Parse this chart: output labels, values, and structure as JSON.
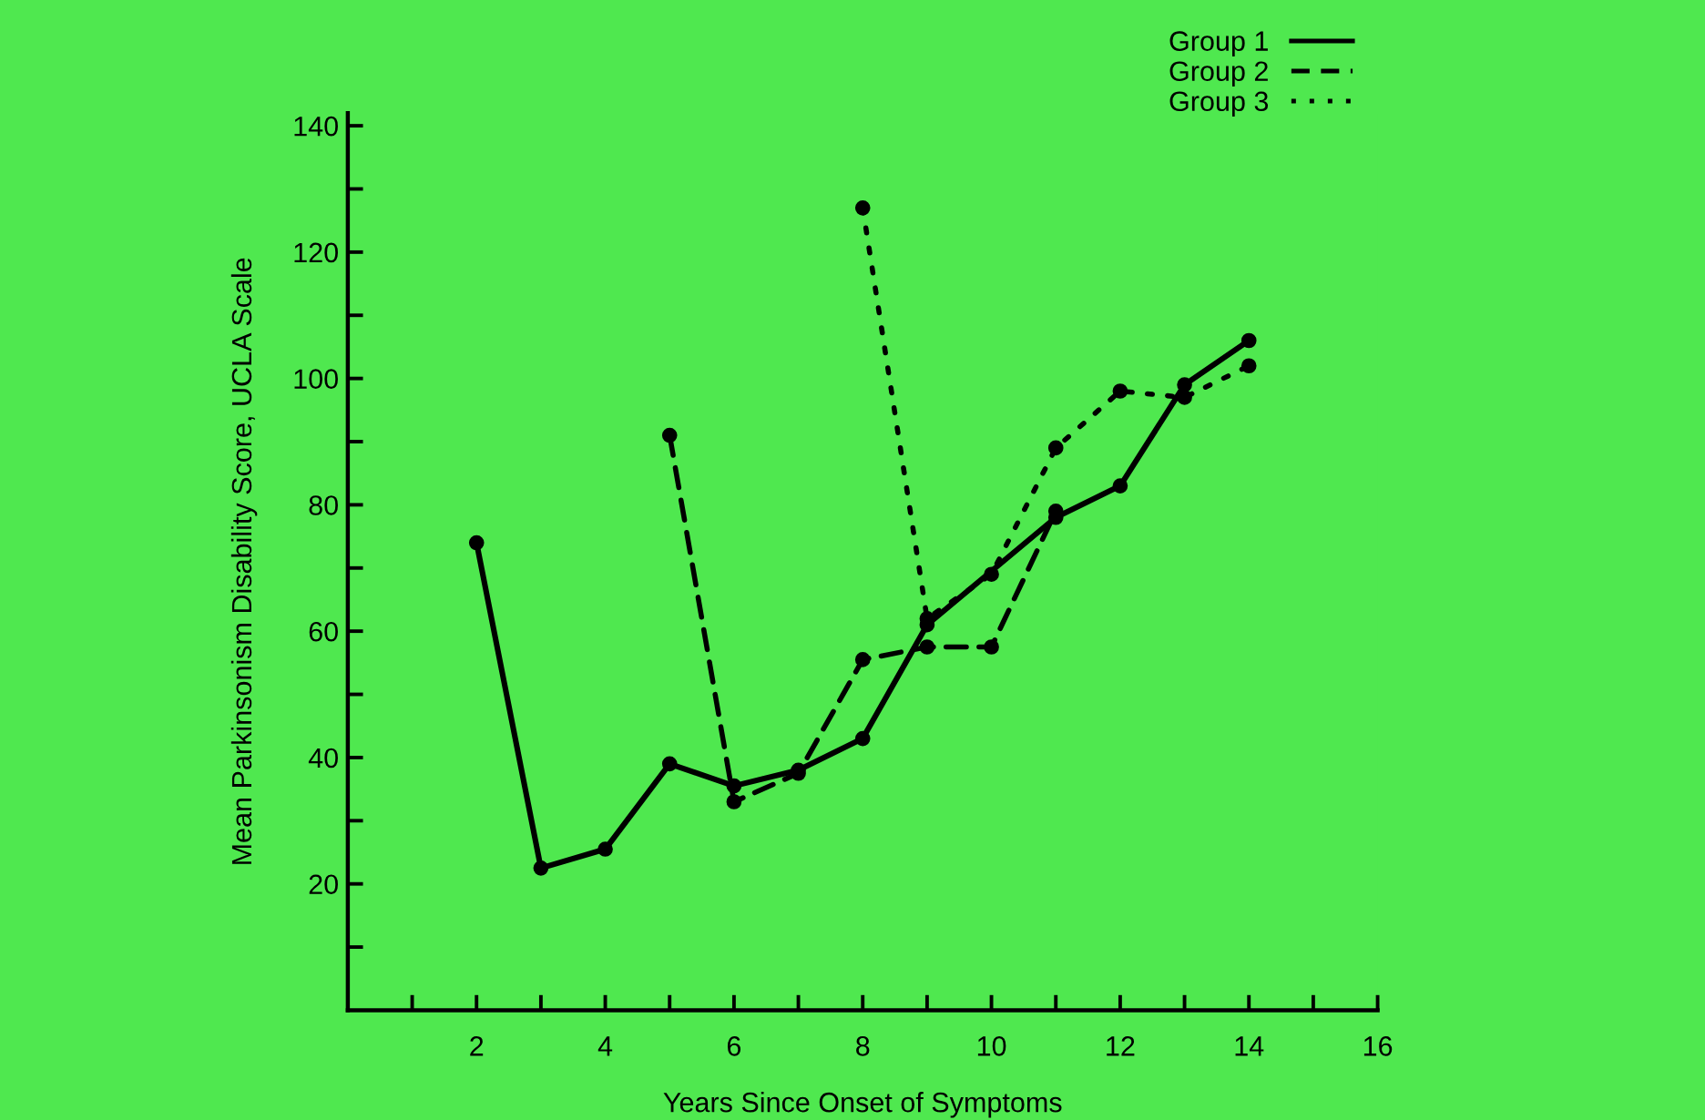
{
  "chart_data": {
    "type": "line",
    "xlabel": "Years Since Onset of Symptoms",
    "ylabel": "Mean Parkinsonism Disability Score, UCLA Scale",
    "xlim": [
      0,
      16
    ],
    "ylim": [
      0,
      142
    ],
    "xticks": [
      {
        "value": 1,
        "label": null
      },
      2,
      {
        "value": 3,
        "label": null
      },
      4,
      {
        "value": 5,
        "label": null
      },
      6,
      {
        "value": 7,
        "label": null
      },
      8,
      {
        "value": 9,
        "label": null
      },
      10,
      {
        "value": 11,
        "label": null
      },
      12,
      {
        "value": 13,
        "label": null
      },
      14,
      {
        "value": 15,
        "label": null
      },
      16
    ],
    "yticks": [
      {
        "value": 10,
        "label": null
      },
      20,
      {
        "value": 30,
        "label": null
      },
      40,
      {
        "value": 50,
        "label": null
      },
      60,
      {
        "value": 70,
        "label": null
      },
      80,
      {
        "value": 90,
        "label": null
      },
      100,
      {
        "value": 110,
        "label": null
      },
      120,
      {
        "value": 130,
        "label": null
      },
      140
    ],
    "grid": false,
    "legend": "top right",
    "marker": "circle",
    "series": [
      {
        "name": "Group 1",
        "color": "#000000",
        "line_style": "solid",
        "x": [
          2,
          3,
          4,
          5,
          6,
          7,
          8,
          9,
          11,
          12,
          13,
          14
        ],
        "values": [
          74,
          22.5,
          25.5,
          39,
          35.5,
          38,
          43,
          61,
          78,
          83,
          99,
          106
        ]
      },
      {
        "name": "Group 2",
        "color": "#000000",
        "line_style": "dashed",
        "x": [
          5,
          6,
          7,
          8,
          9,
          10,
          11
        ],
        "values": [
          91,
          33,
          37.5,
          55.5,
          57.5,
          57.5,
          79
        ]
      },
      {
        "name": "Group 3",
        "color": "#000000",
        "line_style": "dotted",
        "x": [
          8,
          9,
          10,
          11,
          12,
          13,
          14
        ],
        "values": [
          127,
          62,
          69,
          89,
          98,
          97,
          102
        ]
      }
    ]
  }
}
